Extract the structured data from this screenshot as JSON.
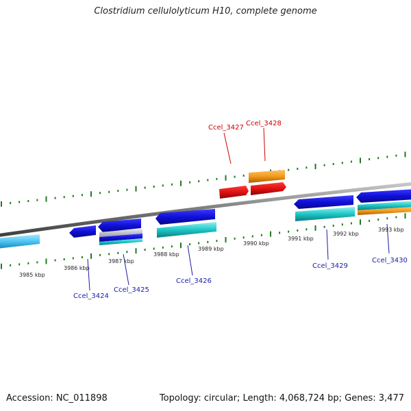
{
  "title": "Clostridium cellulolyticum H10, complete genome",
  "footer": {
    "accession": "Accession: NC_011898",
    "summary": "Topology: circular; Length: 4,068,724 bp; Genes: 3,477"
  },
  "colors": {
    "backbone": "#8a8a8a",
    "ticks": "#1f7a1f",
    "label_red": "#cc0000",
    "label_blue": "#1a1aa8"
  },
  "tick_labels": [
    "3985 kbp",
    "3986 kbp",
    "3987 kbp",
    "3988 kbp",
    "3989 kbp",
    "3990 kbp",
    "3991 kbp",
    "3992 kbp",
    "3993 kbp"
  ],
  "gene_labels": [
    {
      "text": "Ccel_3427",
      "color": "red"
    },
    {
      "text": "Ccel_3428",
      "color": "red"
    },
    {
      "text": "Ccel_3424",
      "color": "blue"
    },
    {
      "text": "Ccel_3425",
      "color": "blue"
    },
    {
      "text": "Ccel_3426",
      "color": "blue"
    },
    {
      "text": "Ccel_3429",
      "color": "blue"
    },
    {
      "text": "Ccel_3430",
      "color": "blue"
    }
  ]
}
